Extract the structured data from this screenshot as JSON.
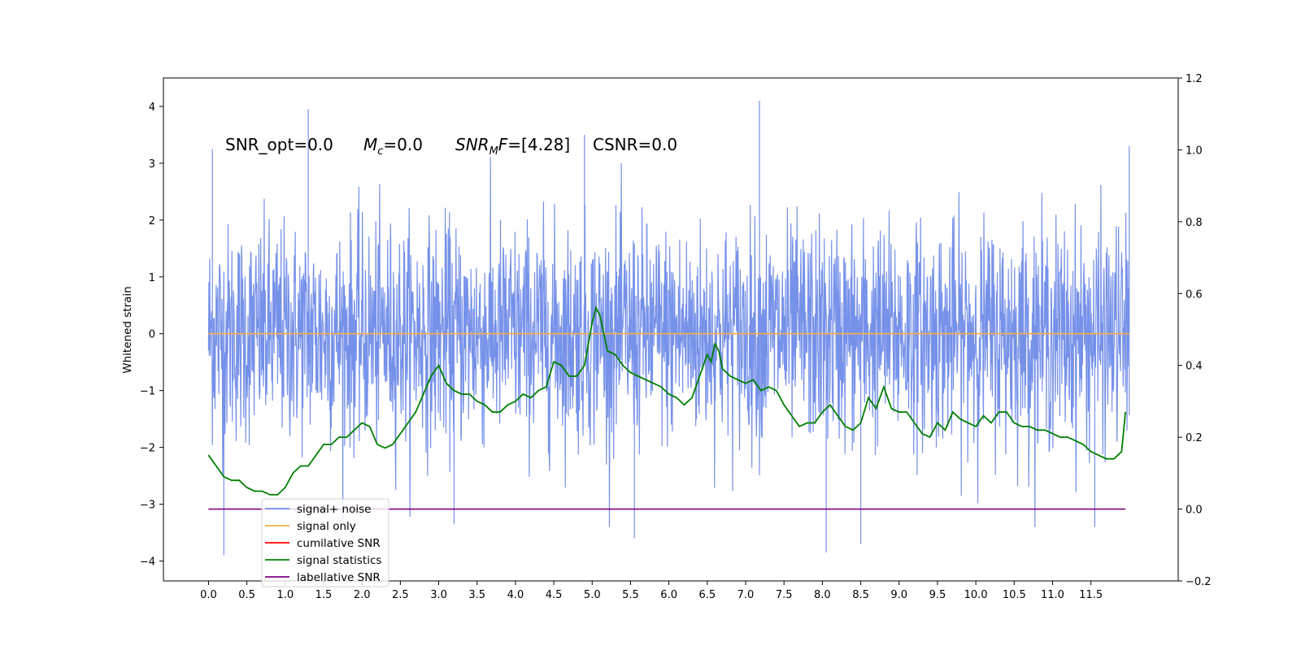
{
  "chart_data": {
    "type": "line",
    "title": "",
    "xlabel": "",
    "ylabel": "Whitened strain",
    "xlim": [
      -0.5875,
      12.6375
    ],
    "ylim": [
      -4.35,
      4.5
    ],
    "y2lim": [
      -0.2,
      1.2
    ],
    "grid": false,
    "x_ticks": [
      "0.0",
      "0.5",
      "1.0",
      "1.5",
      "2.0",
      "2.5",
      "3.0",
      "3.5",
      "4.0",
      "4.5",
      "5.0",
      "5.5",
      "6.0",
      "6.5",
      "7.0",
      "7.5",
      "8.0",
      "8.5",
      "9.0",
      "9.5",
      "10.0",
      "10.5",
      "11.0",
      "11.5"
    ],
    "y_ticks": [
      "4",
      "3",
      "2",
      "1",
      "0",
      "−1",
      "−2",
      "−3",
      "−4"
    ],
    "y2_ticks": [
      "1.2",
      "1.0",
      "0.8",
      "0.6",
      "0.4",
      "0.2",
      "0.0",
      "−0.2"
    ],
    "annotations": {
      "snr_opt": "SNR_opt=0.0",
      "mc_symbol": "M",
      "mc_sub": "c",
      "mc_value": "=0.0",
      "snrmf_a": "SNR",
      "snrmf_sub": "M",
      "snrmf_b": "F",
      "snrmf_value": "=[4.28]",
      "csnr": "CSNR=0.0"
    },
    "legend": {
      "placement": "lower-left",
      "entries": [
        "signal+ noise",
        "signal only",
        "cumilative SNR",
        "signal statistics",
        "label"
      ],
      "ghost_text": "lative SNR"
    },
    "series": [
      {
        "name": "signal+ noise",
        "axis": "left",
        "color": "#6f8be8",
        "kind": "noise",
        "x_range": [
          0.0,
          12.0
        ],
        "y_range_approx": [
          -3.9,
          4.1
        ],
        "peaks": [
          [
            0.05,
            3.25
          ],
          [
            1.3,
            3.95
          ],
          [
            4.9,
            3.5
          ],
          [
            7.18,
            4.1
          ],
          [
            0.2,
            -3.9
          ],
          [
            3.2,
            -3.35
          ],
          [
            5.55,
            -3.6
          ],
          [
            8.05,
            -3.85
          ],
          [
            8.5,
            -3.7
          ],
          [
            11.55,
            -3.4
          ],
          [
            12.0,
            3.3
          ]
        ]
      },
      {
        "name": "signal only",
        "axis": "left",
        "color": "#f5b041",
        "x": [
          0.0,
          12.0
        ],
        "y": [
          0.0,
          0.0
        ]
      },
      {
        "name": "cumilative SNR",
        "axis": "left",
        "color": "#ff0000",
        "x": [],
        "y": []
      },
      {
        "name": "signal statistics",
        "axis": "right",
        "color": "#008000",
        "x": [
          0.0,
          0.1,
          0.2,
          0.3,
          0.4,
          0.5,
          0.6,
          0.7,
          0.8,
          0.9,
          1.0,
          1.1,
          1.2,
          1.3,
          1.4,
          1.5,
          1.6,
          1.7,
          1.8,
          1.9,
          2.0,
          2.1,
          2.2,
          2.3,
          2.4,
          2.5,
          2.6,
          2.7,
          2.8,
          2.9,
          3.0,
          3.1,
          3.2,
          3.3,
          3.4,
          3.5,
          3.6,
          3.7,
          3.8,
          3.9,
          4.0,
          4.1,
          4.2,
          4.3,
          4.4,
          4.5,
          4.6,
          4.7,
          4.8,
          4.9,
          5.0,
          5.05,
          5.1,
          5.2,
          5.3,
          5.4,
          5.5,
          5.6,
          5.7,
          5.8,
          5.9,
          6.0,
          6.1,
          6.2,
          6.3,
          6.4,
          6.5,
          6.55,
          6.6,
          6.65,
          6.7,
          6.8,
          6.9,
          7.0,
          7.1,
          7.2,
          7.3,
          7.4,
          7.5,
          7.6,
          7.7,
          7.8,
          7.9,
          8.0,
          8.1,
          8.2,
          8.3,
          8.4,
          8.5,
          8.6,
          8.7,
          8.8,
          8.9,
          9.0,
          9.1,
          9.2,
          9.3,
          9.4,
          9.5,
          9.6,
          9.7,
          9.8,
          9.9,
          10.0,
          10.1,
          10.2,
          10.3,
          10.4,
          10.5,
          10.6,
          10.7,
          10.8,
          10.9,
          11.0,
          11.1,
          11.2,
          11.3,
          11.4,
          11.5,
          11.6,
          11.7,
          11.8,
          11.9,
          11.95
        ],
        "y": [
          0.15,
          0.12,
          0.09,
          0.08,
          0.08,
          0.06,
          0.05,
          0.05,
          0.04,
          0.04,
          0.06,
          0.1,
          0.12,
          0.12,
          0.15,
          0.18,
          0.18,
          0.2,
          0.2,
          0.22,
          0.24,
          0.23,
          0.18,
          0.17,
          0.18,
          0.21,
          0.24,
          0.27,
          0.32,
          0.37,
          0.4,
          0.35,
          0.33,
          0.32,
          0.32,
          0.3,
          0.29,
          0.27,
          0.27,
          0.29,
          0.3,
          0.32,
          0.31,
          0.33,
          0.34,
          0.41,
          0.4,
          0.37,
          0.37,
          0.4,
          0.52,
          0.56,
          0.54,
          0.44,
          0.43,
          0.4,
          0.38,
          0.37,
          0.36,
          0.35,
          0.34,
          0.32,
          0.31,
          0.29,
          0.31,
          0.37,
          0.43,
          0.41,
          0.46,
          0.44,
          0.39,
          0.37,
          0.36,
          0.35,
          0.36,
          0.33,
          0.34,
          0.33,
          0.29,
          0.26,
          0.23,
          0.24,
          0.24,
          0.27,
          0.29,
          0.26,
          0.23,
          0.22,
          0.24,
          0.31,
          0.28,
          0.34,
          0.28,
          0.27,
          0.27,
          0.24,
          0.21,
          0.2,
          0.24,
          0.22,
          0.27,
          0.25,
          0.24,
          0.23,
          0.26,
          0.24,
          0.27,
          0.27,
          0.24,
          0.23,
          0.23,
          0.22,
          0.22,
          0.21,
          0.2,
          0.2,
          0.19,
          0.18,
          0.16,
          0.15,
          0.14,
          0.14,
          0.16,
          0.27
        ]
      },
      {
        "name": "label",
        "axis": "right",
        "color": "#800080",
        "x": [
          0.0,
          11.95
        ],
        "y": [
          0.0,
          0.0
        ]
      }
    ]
  }
}
